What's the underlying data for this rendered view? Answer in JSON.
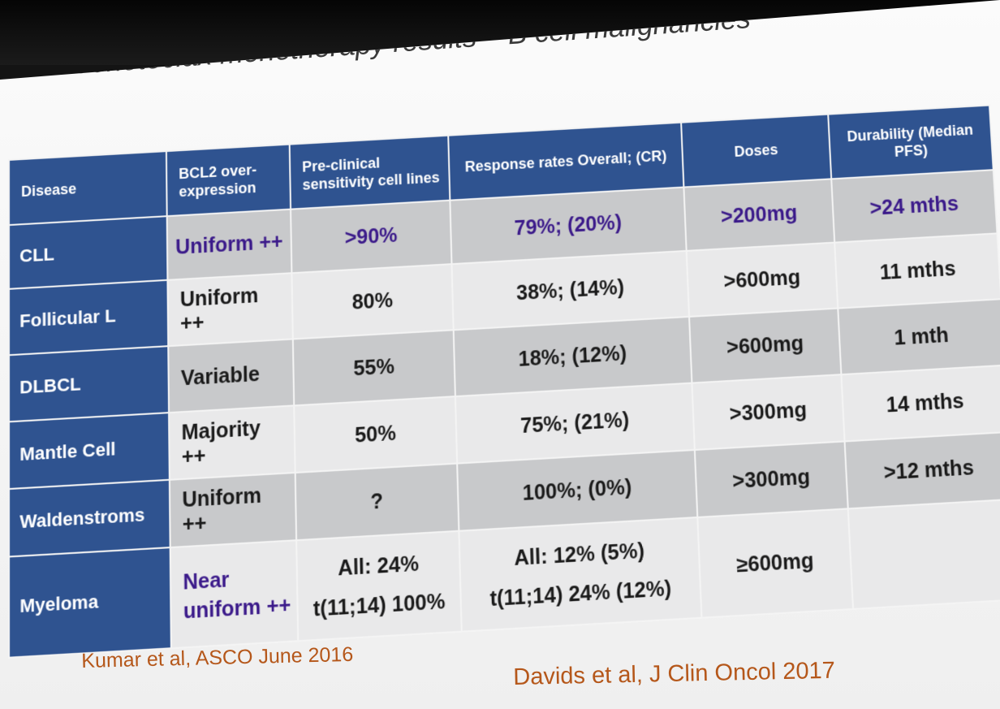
{
  "slide": {
    "title": "Venetoclax monotherapy results – B cell malignancies",
    "footer_left": "Kumar et al, ASCO June 2016",
    "footer_right": "Davids et al, J Clin Oncol 2017"
  },
  "table": {
    "headers": [
      "Disease",
      "BCL2 over-expression",
      "Pre-clinical sensitivity cell lines",
      "Response rates Overall; (CR)",
      "Doses",
      "Durability (Median PFS)"
    ],
    "rows": [
      {
        "disease": "CLL",
        "expression": "Uniform ++",
        "sensitivity": ">90%",
        "response": "79%; (20%)",
        "doses": ">200mg",
        "durability": ">24 mths"
      },
      {
        "disease": "Follicular L",
        "expression": "Uniform ++",
        "sensitivity": "80%",
        "response": "38%; (14%)",
        "doses": ">600mg",
        "durability": "11 mths"
      },
      {
        "disease": "DLBCL",
        "expression": "Variable",
        "sensitivity": "55%",
        "response": "18%; (12%)",
        "doses": ">600mg",
        "durability": "1 mth"
      },
      {
        "disease": "Mantle Cell",
        "expression": "Majority ++",
        "sensitivity": "50%",
        "response": "75%; (21%)",
        "doses": ">300mg",
        "durability": "14 mths"
      },
      {
        "disease": "Waldenstroms",
        "expression": "Uniform ++",
        "sensitivity": "?",
        "response": "100%; (0%)",
        "doses": ">300mg",
        "durability": ">12 mths"
      },
      {
        "disease": "Myeloma",
        "expression_line1": "Near",
        "expression_line2": "uniform ++",
        "sensitivity_line1": "All: 24%",
        "sensitivity_line2": "t(11;14) 100%",
        "response_line1": "All: 12% (5%)",
        "response_line2": "t(11;14) 24% (12%)",
        "doses": "≥600mg",
        "durability": ""
      }
    ]
  },
  "colors": {
    "header_blue": "#2f5390",
    "highlight_purple": "#3b1a8a",
    "citation_orange": "#b5571a"
  }
}
